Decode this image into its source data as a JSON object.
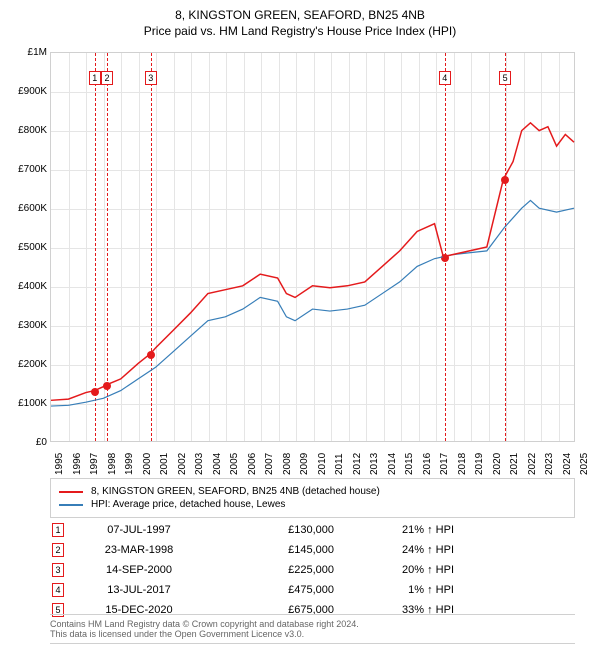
{
  "title": "8, KINGSTON GREEN, SEAFORD, BN25 4NB",
  "subtitle": "Price paid vs. HM Land Registry's House Price Index (HPI)",
  "chart": {
    "type": "line",
    "background_color": "#ffffff",
    "grid_color": "#e5e5e5",
    "border_color": "#d0d0d0",
    "x_years": [
      1995,
      1996,
      1997,
      1998,
      1999,
      2000,
      2001,
      2002,
      2003,
      2004,
      2005,
      2006,
      2007,
      2008,
      2009,
      2010,
      2011,
      2012,
      2013,
      2014,
      2015,
      2016,
      2017,
      2018,
      2019,
      2020,
      2021,
      2022,
      2023,
      2024,
      2025
    ],
    "y_max": 1000000,
    "y_ticks": [
      0,
      100000,
      200000,
      300000,
      400000,
      500000,
      600000,
      700000,
      800000,
      900000,
      1000000
    ],
    "y_tick_labels": [
      "£0",
      "£100K",
      "£200K",
      "£300K",
      "£400K",
      "£500K",
      "£600K",
      "£700K",
      "£800K",
      "£900K",
      "£1M"
    ],
    "series_property": {
      "color": "#e41a1c",
      "width": 1.5,
      "data": [
        [
          1995,
          105000
        ],
        [
          1996,
          108000
        ],
        [
          1997,
          125000
        ],
        [
          1997.5,
          130000
        ],
        [
          1998,
          140000
        ],
        [
          1998.2,
          145000
        ],
        [
          1999,
          160000
        ],
        [
          2000,
          200000
        ],
        [
          2000.7,
          225000
        ],
        [
          2001,
          240000
        ],
        [
          2002,
          285000
        ],
        [
          2003,
          330000
        ],
        [
          2004,
          380000
        ],
        [
          2005,
          390000
        ],
        [
          2006,
          400000
        ],
        [
          2007,
          430000
        ],
        [
          2008,
          420000
        ],
        [
          2008.5,
          380000
        ],
        [
          2009,
          370000
        ],
        [
          2010,
          400000
        ],
        [
          2011,
          395000
        ],
        [
          2012,
          400000
        ],
        [
          2013,
          410000
        ],
        [
          2014,
          450000
        ],
        [
          2015,
          490000
        ],
        [
          2016,
          540000
        ],
        [
          2017,
          560000
        ],
        [
          2017.5,
          475000
        ],
        [
          2018,
          480000
        ],
        [
          2019,
          490000
        ],
        [
          2020,
          500000
        ],
        [
          2020.95,
          675000
        ],
        [
          2021.5,
          720000
        ],
        [
          2022,
          800000
        ],
        [
          2022.5,
          820000
        ],
        [
          2023,
          800000
        ],
        [
          2023.5,
          810000
        ],
        [
          2024,
          760000
        ],
        [
          2024.5,
          790000
        ],
        [
          2025,
          770000
        ]
      ]
    },
    "series_hpi": {
      "color": "#377eb8",
      "width": 1.2,
      "data": [
        [
          1995,
          90000
        ],
        [
          1996,
          92000
        ],
        [
          1997,
          100000
        ],
        [
          1998,
          110000
        ],
        [
          1999,
          130000
        ],
        [
          2000,
          160000
        ],
        [
          2001,
          190000
        ],
        [
          2002,
          230000
        ],
        [
          2003,
          270000
        ],
        [
          2004,
          310000
        ],
        [
          2005,
          320000
        ],
        [
          2006,
          340000
        ],
        [
          2007,
          370000
        ],
        [
          2008,
          360000
        ],
        [
          2008.5,
          320000
        ],
        [
          2009,
          310000
        ],
        [
          2010,
          340000
        ],
        [
          2011,
          335000
        ],
        [
          2012,
          340000
        ],
        [
          2013,
          350000
        ],
        [
          2014,
          380000
        ],
        [
          2015,
          410000
        ],
        [
          2016,
          450000
        ],
        [
          2017,
          470000
        ],
        [
          2018,
          480000
        ],
        [
          2019,
          485000
        ],
        [
          2020,
          490000
        ],
        [
          2021,
          550000
        ],
        [
          2022,
          600000
        ],
        [
          2022.5,
          620000
        ],
        [
          2023,
          600000
        ],
        [
          2024,
          590000
        ],
        [
          2025,
          600000
        ]
      ]
    },
    "sale_markers": [
      {
        "n": "1",
        "year": 1997.5,
        "price": 130000,
        "color": "#e41a1c",
        "box_top": 95000
      },
      {
        "n": "2",
        "year": 1998.2,
        "price": 145000,
        "color": "#e41a1c",
        "box_top": 95000
      },
      {
        "n": "3",
        "year": 2000.7,
        "price": 225000,
        "color": "#e41a1c",
        "box_top": 95000
      },
      {
        "n": "4",
        "year": 2017.5,
        "price": 475000,
        "color": "#e41a1c",
        "box_top": 105000
      },
      {
        "n": "5",
        "year": 2020.95,
        "price": 675000,
        "color": "#e41a1c",
        "box_top": 105000
      }
    ],
    "point_color": "#e41a1c"
  },
  "legend": {
    "items": [
      {
        "color": "#e41a1c",
        "label": "8, KINGSTON GREEN, SEAFORD, BN25 4NB (detached house)"
      },
      {
        "color": "#377eb8",
        "label": "HPI: Average price, detached house, Lewes"
      }
    ]
  },
  "sales": [
    {
      "n": "1",
      "date": "07-JUL-1997",
      "price": "£130,000",
      "hpi": "21% ↑ HPI",
      "color": "#e41a1c"
    },
    {
      "n": "2",
      "date": "23-MAR-1998",
      "price": "£145,000",
      "hpi": "24% ↑ HPI",
      "color": "#e41a1c"
    },
    {
      "n": "3",
      "date": "14-SEP-2000",
      "price": "£225,000",
      "hpi": "20% ↑ HPI",
      "color": "#e41a1c"
    },
    {
      "n": "4",
      "date": "13-JUL-2017",
      "price": "£475,000",
      "hpi": "1% ↑ HPI",
      "color": "#e41a1c"
    },
    {
      "n": "5",
      "date": "15-DEC-2020",
      "price": "£675,000",
      "hpi": "33% ↑ HPI",
      "color": "#e41a1c"
    }
  ],
  "footer": {
    "line1": "Contains HM Land Registry data © Crown copyright and database right 2024.",
    "line2": "This data is licensed under the Open Government Licence v3.0."
  }
}
